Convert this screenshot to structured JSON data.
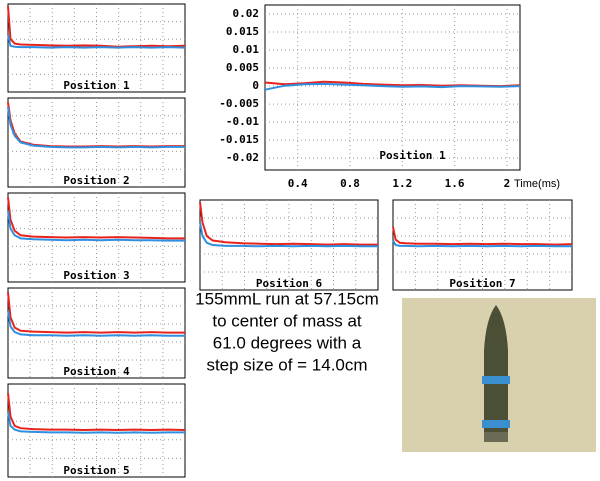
{
  "chart_data": [
    {
      "type": "line",
      "title": "Position 1",
      "x": [
        0,
        0.03,
        0.08,
        0.15,
        0.3,
        0.5,
        0.7,
        0.9,
        1.1,
        1.3,
        1.5,
        1.7,
        1.9,
        2.1
      ],
      "xlim": [
        0,
        2.1
      ],
      "ylim": [
        -1,
        1
      ],
      "grid": true,
      "series": [
        {
          "name": "red",
          "color": "#e8231c",
          "values": [
            0.95,
            0.2,
            0.1,
            0.08,
            0.07,
            0.06,
            0.05,
            0.06,
            0.05,
            0.03,
            0.04,
            0.05,
            0.04,
            0.05
          ]
        },
        {
          "name": "blue",
          "color": "#2f8fe0",
          "values": [
            0.3,
            0.05,
            0.03,
            0.02,
            0.02,
            0.01,
            0.02,
            0.01,
            0.02,
            0.01,
            0.02,
            0.01,
            0.02,
            0.01
          ]
        }
      ]
    },
    {
      "type": "line",
      "title": "Position 2",
      "x": [
        0,
        0.03,
        0.08,
        0.15,
        0.3,
        0.5,
        0.7,
        0.9,
        1.1,
        1.3,
        1.5,
        1.7,
        1.9,
        2.1
      ],
      "xlim": [
        0,
        2.1
      ],
      "ylim": [
        -1,
        1
      ],
      "grid": true,
      "series": [
        {
          "name": "red",
          "color": "#e8231c",
          "values": [
            0.9,
            0.5,
            0.2,
            0.02,
            -0.05,
            -0.08,
            -0.09,
            -0.09,
            -0.08,
            -0.09,
            -0.08,
            -0.09,
            -0.08,
            -0.08
          ]
        },
        {
          "name": "blue",
          "color": "#2f8fe0",
          "values": [
            0.8,
            0.4,
            0.15,
            0,
            -0.07,
            -0.1,
            -0.11,
            -0.11,
            -0.1,
            -0.11,
            -0.1,
            -0.11,
            -0.1,
            -0.1
          ]
        }
      ]
    },
    {
      "type": "line",
      "title": "Position 3",
      "x": [
        0,
        0.03,
        0.08,
        0.15,
        0.3,
        0.5,
        0.7,
        0.9,
        1.1,
        1.3,
        1.5,
        1.7,
        1.9,
        2.1
      ],
      "xlim": [
        0,
        2.1
      ],
      "ylim": [
        -1,
        1
      ],
      "grid": true,
      "series": [
        {
          "name": "red",
          "color": "#e8231c",
          "values": [
            0.9,
            0.4,
            0.15,
            0.05,
            0.02,
            0.01,
            0,
            0.01,
            0,
            0.01,
            0,
            -0.01,
            -0.02,
            -0.02
          ]
        },
        {
          "name": "blue",
          "color": "#2f8fe0",
          "values": [
            0.6,
            0.2,
            0.05,
            -0.02,
            -0.04,
            -0.05,
            -0.06,
            -0.05,
            -0.06,
            -0.05,
            -0.06,
            -0.06,
            -0.07,
            -0.07
          ]
        }
      ]
    },
    {
      "type": "line",
      "title": "Position 4",
      "x": [
        0,
        0.03,
        0.08,
        0.15,
        0.3,
        0.5,
        0.7,
        0.9,
        1.1,
        1.3,
        1.5,
        1.7,
        1.9,
        2.1
      ],
      "xlim": [
        0,
        2.1
      ],
      "ylim": [
        -1,
        1
      ],
      "grid": true,
      "series": [
        {
          "name": "red",
          "color": "#e8231c",
          "values": [
            0.9,
            0.35,
            0.12,
            0.05,
            0.03,
            0.02,
            0.01,
            0.02,
            0.01,
            0.02,
            0.01,
            0.02,
            0.01,
            0.01
          ]
        },
        {
          "name": "blue",
          "color": "#2f8fe0",
          "values": [
            0.5,
            0.15,
            0.02,
            -0.03,
            -0.05,
            -0.05,
            -0.06,
            -0.05,
            -0.06,
            -0.05,
            -0.06,
            -0.05,
            -0.06,
            -0.06
          ]
        }
      ]
    },
    {
      "type": "line",
      "title": "Position 5",
      "x": [
        0,
        0.03,
        0.08,
        0.15,
        0.3,
        0.5,
        0.7,
        0.9,
        1.1,
        1.3,
        1.5,
        1.7,
        1.9,
        2.1
      ],
      "xlim": [
        0,
        2.1
      ],
      "ylim": [
        -1,
        1
      ],
      "grid": true,
      "series": [
        {
          "name": "red",
          "color": "#e8231c",
          "values": [
            0.8,
            0.3,
            0.1,
            0.05,
            0.03,
            0.02,
            0.02,
            0.01,
            0.02,
            0.01,
            0.02,
            0.01,
            0.02,
            0.01
          ]
        },
        {
          "name": "blue",
          "color": "#2f8fe0",
          "values": [
            0.4,
            0.1,
            0.02,
            -0.02,
            -0.03,
            -0.04,
            -0.04,
            -0.05,
            -0.04,
            -0.05,
            -0.04,
            -0.05,
            -0.04,
            -0.04
          ]
        }
      ]
    },
    {
      "type": "line",
      "title": "Position 1",
      "x_label": "Time(ms)",
      "x": [
        0.15,
        0.3,
        0.45,
        0.6,
        0.75,
        0.9,
        1.05,
        1.2,
        1.35,
        1.5,
        1.65,
        1.8,
        1.95,
        2.1
      ],
      "xlim": [
        0.15,
        2.1
      ],
      "ylim": [
        -0.0233,
        0.0225
      ],
      "grid": true,
      "xticks": [
        0.4,
        0.8,
        1.2,
        1.6,
        2
      ],
      "yticks": [
        0.02,
        0.015,
        0.01,
        0.005,
        0,
        -0.005,
        -0.01,
        -0.015,
        -0.02
      ],
      "series": [
        {
          "name": "red",
          "color": "#e8231c",
          "values": [
            0.001,
            0.0005,
            0.0008,
            0.0012,
            0.001,
            0.0006,
            0.0004,
            0.0002,
            0.0003,
            0.0001,
            0.0002,
            0.0001,
            0,
            0.0002
          ]
        },
        {
          "name": "blue",
          "color": "#2f8fe0",
          "values": [
            -0.001,
            0.0001,
            0.0005,
            0.0006,
            0.0004,
            0.0002,
            0,
            -0.0002,
            -0.0001,
            -0.0003,
            0,
            -0.0001,
            -0.0002,
            0
          ]
        }
      ]
    },
    {
      "type": "line",
      "title": "Position 6",
      "x": [
        0,
        0.03,
        0.08,
        0.15,
        0.3,
        0.5,
        0.7,
        0.9,
        1.1,
        1.3,
        1.5,
        1.7,
        1.9,
        2.1
      ],
      "xlim": [
        0,
        2.1
      ],
      "ylim": [
        -1,
        1
      ],
      "grid": true,
      "series": [
        {
          "name": "red",
          "color": "#e8231c",
          "values": [
            0.95,
            0.5,
            0.2,
            0.1,
            0.06,
            0.04,
            0.03,
            0.02,
            0.03,
            0.02,
            0.01,
            0.02,
            0.01,
            0.01
          ]
        },
        {
          "name": "blue",
          "color": "#2f8fe0",
          "values": [
            0.5,
            0.2,
            0.05,
            0,
            -0.02,
            -0.02,
            -0.03,
            -0.02,
            -0.03,
            -0.02,
            -0.03,
            -0.02,
            -0.03,
            -0.03
          ]
        }
      ]
    },
    {
      "type": "line",
      "title": "Position 7",
      "x": [
        0,
        0.03,
        0.08,
        0.15,
        0.3,
        0.5,
        0.7,
        0.9,
        1.1,
        1.3,
        1.5,
        1.7,
        1.9,
        2.1
      ],
      "xlim": [
        0,
        2.1
      ],
      "ylim": [
        -1,
        1
      ],
      "grid": true,
      "series": [
        {
          "name": "red",
          "color": "#e8231c",
          "values": [
            0.4,
            0.12,
            0.05,
            0.04,
            0.03,
            0.03,
            0.02,
            0.03,
            0.02,
            0.03,
            0.02,
            0.02,
            0.01,
            0.02
          ]
        },
        {
          "name": "blue",
          "color": "#2f8fe0",
          "values": [
            0.1,
            0,
            -0.02,
            -0.02,
            -0.03,
            -0.02,
            -0.03,
            -0.02,
            -0.03,
            -0.02,
            -0.03,
            -0.02,
            -0.03,
            -0.03
          ]
        }
      ]
    }
  ],
  "caption": [
    "155mmL run at 57.15cm",
    "to center of mass at",
    "61.0 degrees with a",
    "step size of = 14.0cm"
  ]
}
